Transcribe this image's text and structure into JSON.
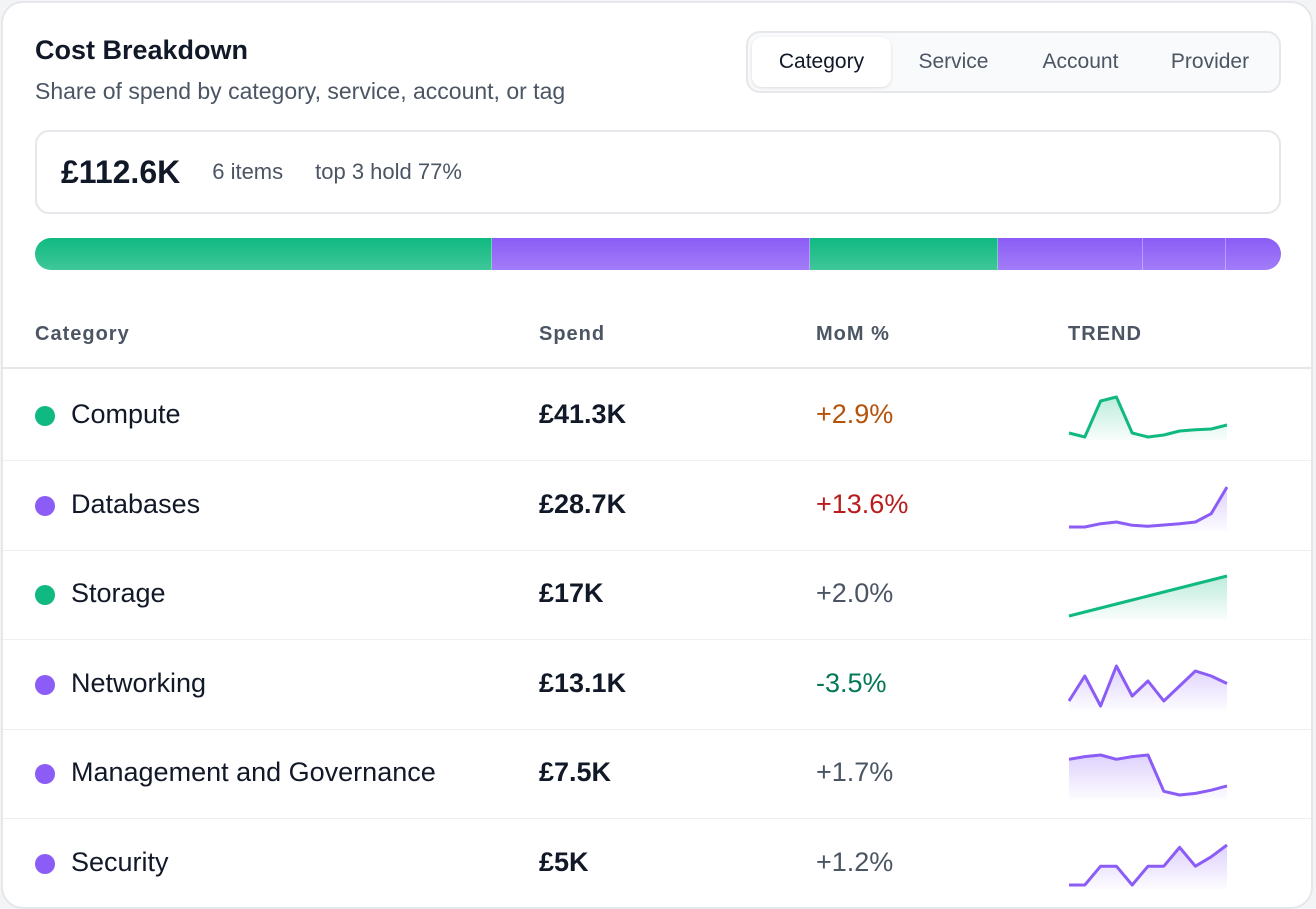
{
  "header": {
    "title": "Cost Breakdown",
    "subtitle": "Share of spend by category, service, account, or tag"
  },
  "tabs": [
    {
      "label": "Category",
      "active": true
    },
    {
      "label": "Service",
      "active": false
    },
    {
      "label": "Account",
      "active": false
    },
    {
      "label": "Provider",
      "active": false
    }
  ],
  "summary": {
    "total": "£112.6K",
    "items": "6 items",
    "top_hold": "top 3 hold 77%"
  },
  "colors": {
    "green": "#10b981",
    "purple": "#8b5cf6",
    "up": "#b45309",
    "up_strong": "#b91c1c",
    "neutral": "#4b5563",
    "down": "#047857"
  },
  "table": {
    "headers": {
      "category": "Category",
      "spend": "Spend",
      "mom": "MoM %",
      "trend": "TREND"
    },
    "rows": [
      {
        "name": "Compute",
        "spend": "£41.3K",
        "share": 0.367,
        "mom": "+2.9%",
        "mom_tone": "up",
        "color": "green",
        "trend": [
          4,
          3,
          12,
          13,
          4,
          3,
          3.5,
          4.5,
          4.8,
          5,
          6
        ]
      },
      {
        "name": "Databases",
        "spend": "£28.7K",
        "share": 0.255,
        "mom": "+13.6%",
        "mom_tone": "up_strong",
        "color": "purple",
        "trend": [
          2,
          2,
          3,
          3.5,
          2.5,
          2.2,
          2.6,
          3,
          3.5,
          6,
          14
        ]
      },
      {
        "name": "Storage",
        "spend": "£17K",
        "share": 0.151,
        "mom": "+2.0%",
        "mom_tone": "neutral",
        "color": "green",
        "trend": [
          2,
          3,
          4,
          5,
          6,
          7,
          8,
          9,
          10,
          11,
          12
        ]
      },
      {
        "name": "Networking",
        "spend": "£13.1K",
        "share": 0.116,
        "mom": "-3.5%",
        "mom_tone": "down",
        "color": "purple",
        "trend": [
          5,
          10,
          4,
          12,
          6,
          9,
          5,
          8,
          11,
          10,
          8.5
        ]
      },
      {
        "name": "Management and Governance",
        "spend": "£7.5K",
        "share": 0.067,
        "mom": "+1.7%",
        "mom_tone": "neutral",
        "color": "purple",
        "trend": [
          10,
          10.5,
          10.8,
          10,
          10.5,
          10.8,
          4,
          3.3,
          3.6,
          4.2,
          5
        ]
      },
      {
        "name": "Security",
        "spend": "£5K",
        "share": 0.044,
        "mom": "+1.2%",
        "mom_tone": "neutral",
        "color": "purple",
        "trend": [
          2,
          2,
          6,
          6,
          2,
          6,
          6,
          10,
          6,
          8,
          10.5
        ]
      }
    ]
  }
}
